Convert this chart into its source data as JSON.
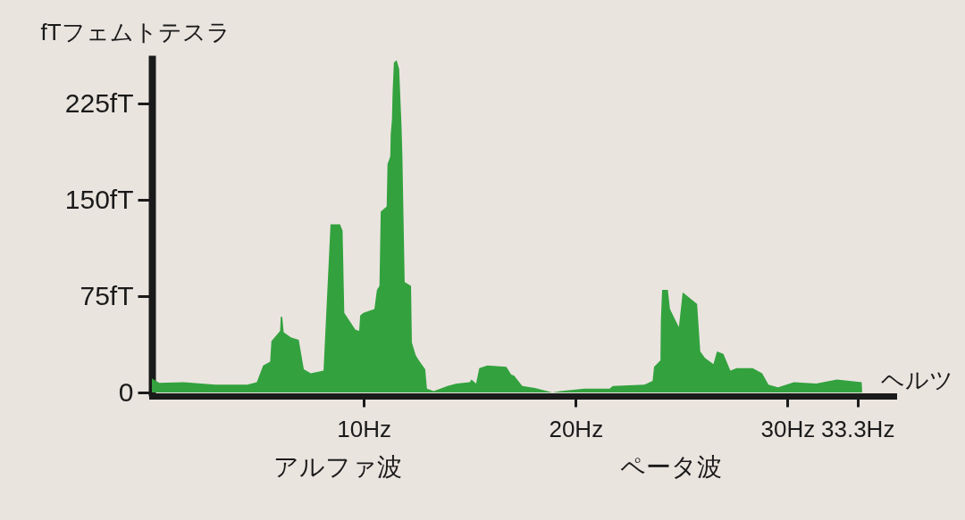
{
  "chart_data": {
    "type": "area",
    "ylabel": "fTフェムトテスラ",
    "xlabel": "ヘルツ",
    "annotations": [
      "アルファ波",
      "ペータ波"
    ],
    "x": [
      0,
      0.35,
      1.5,
      3.0,
      4.5,
      4.95,
      5.25,
      5.58,
      5.64,
      6.05,
      6.08,
      6.15,
      6.22,
      6.56,
      6.93,
      7.17,
      7.5,
      8.1,
      8.43,
      8.88,
      9.0,
      9.08,
      9.6,
      9.78,
      9.83,
      9.98,
      10.5,
      10.62,
      10.74,
      10.8,
      11.08,
      11.12,
      11.25,
      11.27,
      11.33,
      11.36,
      11.42,
      11.55,
      11.67,
      11.78,
      11.82,
      11.93,
      12.23,
      12.27,
      12.45,
      12.6,
      12.9,
      12.98,
      13.3,
      13.95,
      14.4,
      15.0,
      15.08,
      15.3,
      15.45,
      15.83,
      16.73,
      16.95,
      17.1,
      17.48,
      18.08,
      18.9,
      19.28,
      20.4,
      21.6,
      21.75,
      23.25,
      23.63,
      23.7,
      24.0,
      24.02,
      24.08,
      24.35,
      24.45,
      24.87,
      25.05,
      25.73,
      25.88,
      26.1,
      26.5,
      26.67,
      26.97,
      27.3,
      27.6,
      28.35,
      28.8,
      29.1,
      29.55,
      30.3,
      31.35,
      32.33,
      33.5,
      33.52
    ],
    "values": [
      11,
      7.5,
      8,
      6,
      6,
      8,
      21,
      24,
      40,
      48,
      59,
      59,
      47,
      43,
      41,
      18,
      15,
      17,
      131,
      131,
      126,
      62,
      49,
      48,
      60,
      62,
      65,
      80,
      83,
      141,
      145,
      178,
      184,
      201,
      213,
      234,
      257,
      259,
      252,
      208,
      186,
      86,
      83,
      39,
      29,
      25,
      18,
      3,
      1,
      5,
      7,
      8,
      10,
      7,
      19,
      21,
      20,
      14,
      13,
      5,
      3.5,
      0,
      1,
      3,
      3,
      5,
      6,
      9,
      20,
      25,
      56,
      80,
      80,
      65,
      51,
      78,
      69,
      32,
      27,
      22,
      32,
      30,
      17,
      19,
      19,
      15,
      6,
      4,
      8,
      7,
      10,
      8,
      0
    ],
    "color": "#33a23e",
    "xlim": [
      0,
      35
    ],
    "xticks": [
      {
        "value": 10,
        "label": "10Hz"
      },
      {
        "value": 20,
        "label": "20Hz"
      },
      {
        "value": 30,
        "label": "30Hz"
      },
      {
        "value": 33.3,
        "label": "33.3Hz"
      }
    ],
    "ylim": [
      0,
      260
    ],
    "yticks": [
      0,
      {
        "value": 75,
        "label": "75fT"
      },
      {
        "value": 150,
        "label": "150fT"
      },
      {
        "value": 225,
        "label": "225fT"
      }
    ]
  }
}
